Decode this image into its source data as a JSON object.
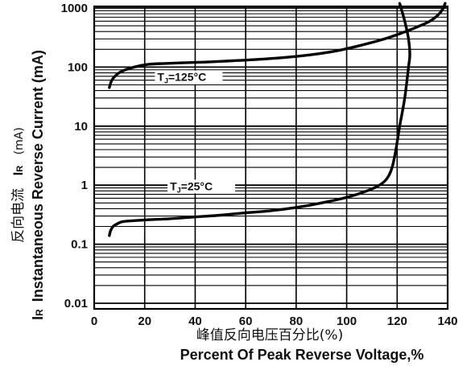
{
  "chart_data": {
    "type": "line",
    "xscale": "linear",
    "yscale": "log",
    "xlim": [
      0,
      140
    ],
    "ylim": [
      0.01,
      1000
    ],
    "grid": true,
    "x_ticks": [
      "0",
      "20",
      "40",
      "60",
      "80",
      "100",
      "120",
      "140"
    ],
    "y_ticks": [
      "1000",
      "100",
      "10",
      "1",
      "0.1",
      "0.01"
    ],
    "xlabel_cn": "峰值反向电压百分比(%)",
    "xlabel": "Percent  Of Peak Reverse Voltage,%",
    "ylabel_cn": "反向电流",
    "ylabel_symbol_main": "I",
    "ylabel_symbol_sub": "R",
    "ylabel_unit": "(mA)",
    "ylabel_prefix_main": "I",
    "ylabel_prefix_sub": "R",
    "ylabel": "Instantaneous Reverse Current (mA)",
    "series": [
      {
        "label_main": "T",
        "label_sub": "J",
        "label_rest": "=125°C",
        "points": [
          [
            6,
            45
          ],
          [
            7,
            60
          ],
          [
            9,
            75
          ],
          [
            11,
            85
          ],
          [
            14,
            95
          ],
          [
            18,
            105
          ],
          [
            22,
            112
          ],
          [
            28,
            115
          ],
          [
            35,
            118
          ],
          [
            45,
            122
          ],
          [
            55,
            128
          ],
          [
            65,
            135
          ],
          [
            75,
            145
          ],
          [
            85,
            160
          ],
          [
            95,
            185
          ],
          [
            105,
            230
          ],
          [
            115,
            300
          ],
          [
            122,
            380
          ],
          [
            128,
            480
          ],
          [
            133,
            600
          ],
          [
            136,
            750
          ],
          [
            138,
            950
          ],
          [
            139,
            1200
          ]
        ]
      },
      {
        "label_main": "T",
        "label_sub": "J",
        "label_rest": "=25°C",
        "points": [
          [
            6,
            0.14
          ],
          [
            6.5,
            0.17
          ],
          [
            7.5,
            0.2
          ],
          [
            9,
            0.22
          ],
          [
            11,
            0.24
          ],
          [
            15,
            0.25
          ],
          [
            22,
            0.26
          ],
          [
            30,
            0.27
          ],
          [
            40,
            0.29
          ],
          [
            50,
            0.31
          ],
          [
            60,
            0.34
          ],
          [
            70,
            0.37
          ],
          [
            80,
            0.42
          ],
          [
            90,
            0.5
          ],
          [
            100,
            0.62
          ],
          [
            108,
            0.8
          ],
          [
            113,
            1.0
          ],
          [
            116,
            1.3
          ],
          [
            118,
            2.0
          ],
          [
            119.5,
            4
          ],
          [
            121,
            10
          ],
          [
            123,
            30
          ],
          [
            124.5,
            100
          ],
          [
            125,
            160
          ],
          [
            124.5,
            300
          ],
          [
            123,
            600
          ],
          [
            121,
            1200
          ]
        ]
      }
    ]
  }
}
